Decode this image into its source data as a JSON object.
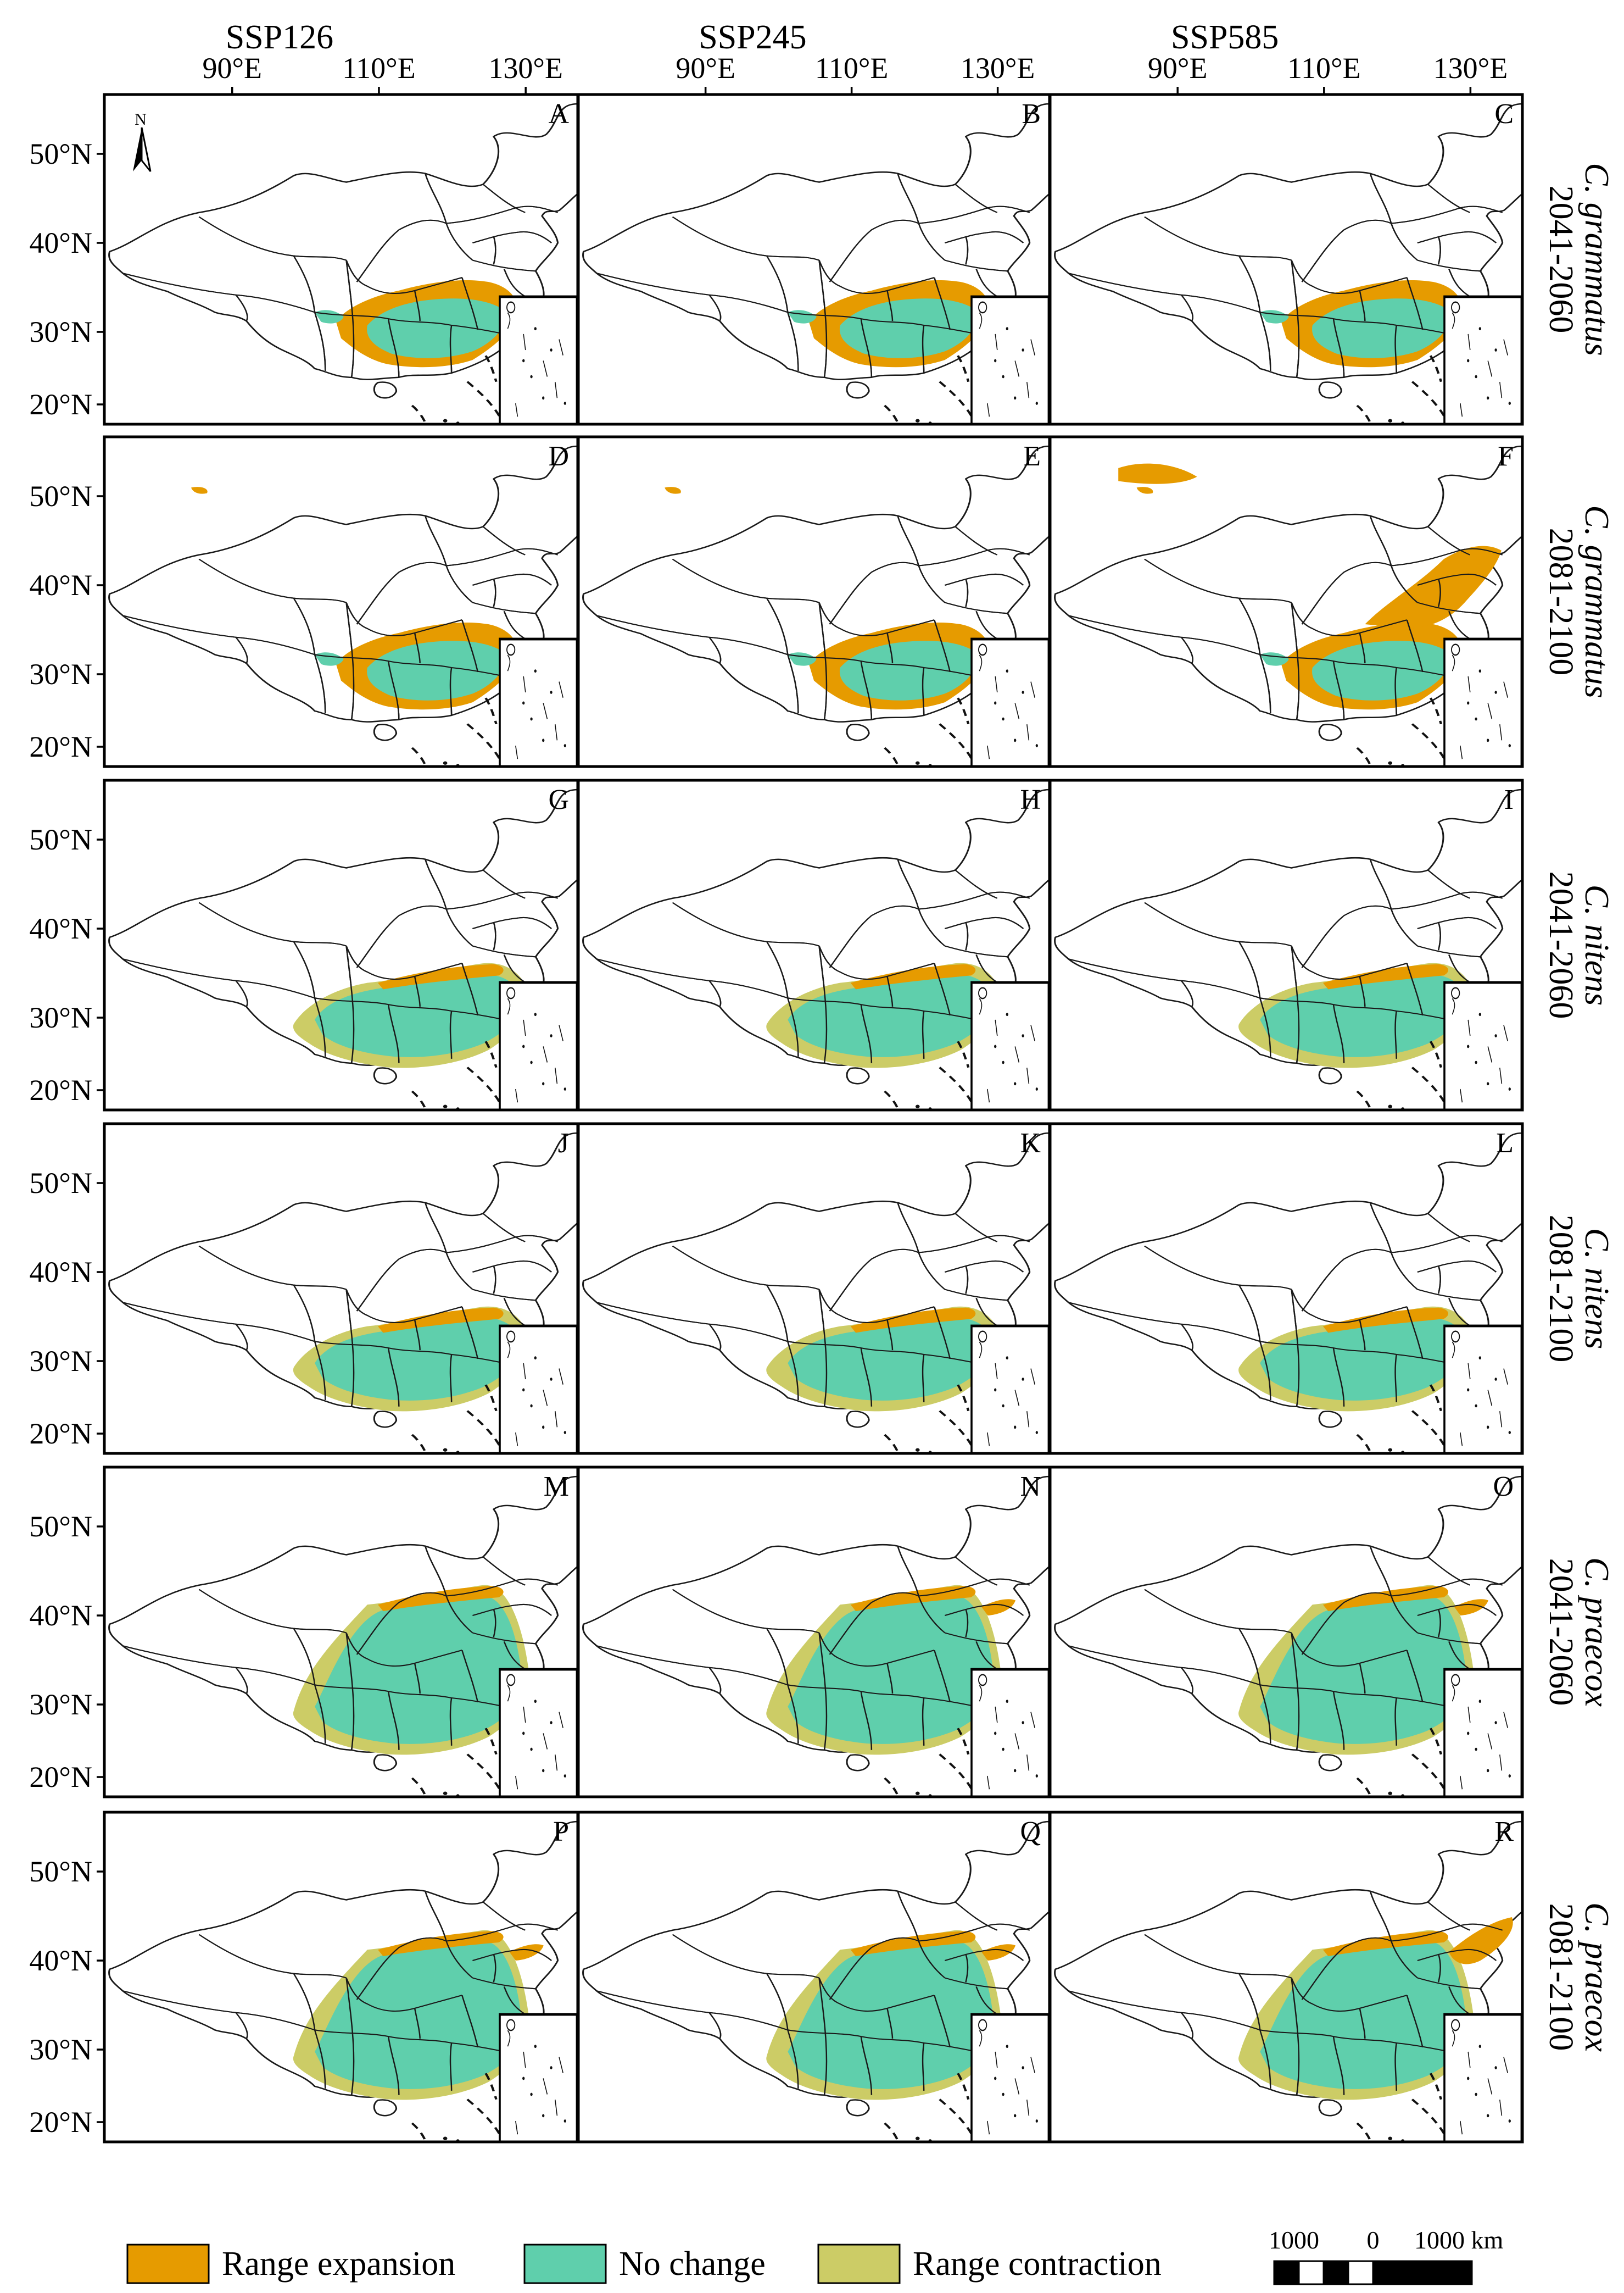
{
  "figure": {
    "scenarios": [
      "SSP126",
      "SSP245",
      "SSP585"
    ],
    "longitude_ticks": [
      "90°E",
      "110°E",
      "130°E"
    ],
    "latitude_ticks": [
      "50°N",
      "40°N",
      "30°N",
      "20°N"
    ],
    "north_arrow": "N",
    "rows": [
      {
        "period": "2041-2060",
        "species": "C. grammatus",
        "letters": [
          "A",
          "B",
          "C"
        ]
      },
      {
        "period": "2081-2100",
        "species": "C. grammatus",
        "letters": [
          "D",
          "E",
          "F"
        ]
      },
      {
        "period": "2041-2060",
        "species": "C. nitens",
        "letters": [
          "G",
          "H",
          "I"
        ]
      },
      {
        "period": "2081-2100",
        "species": "C. nitens",
        "letters": [
          "J",
          "K",
          "L"
        ]
      },
      {
        "period": "2041-2060",
        "species": "C. praecox",
        "letters": [
          "M",
          "N",
          "O"
        ]
      },
      {
        "period": "2081-2100",
        "species": "C. praecox",
        "letters": [
          "P",
          "Q",
          "R"
        ]
      }
    ]
  },
  "legend": {
    "items": [
      {
        "label": "Range expansion",
        "color": "#e69b00"
      },
      {
        "label": "No change",
        "color": "#5fcfac"
      },
      {
        "label": "Range contraction",
        "color": "#cccc66"
      }
    ]
  },
  "scale_bar": {
    "left": "1000",
    "mid": "0",
    "right": "1000 km"
  }
}
